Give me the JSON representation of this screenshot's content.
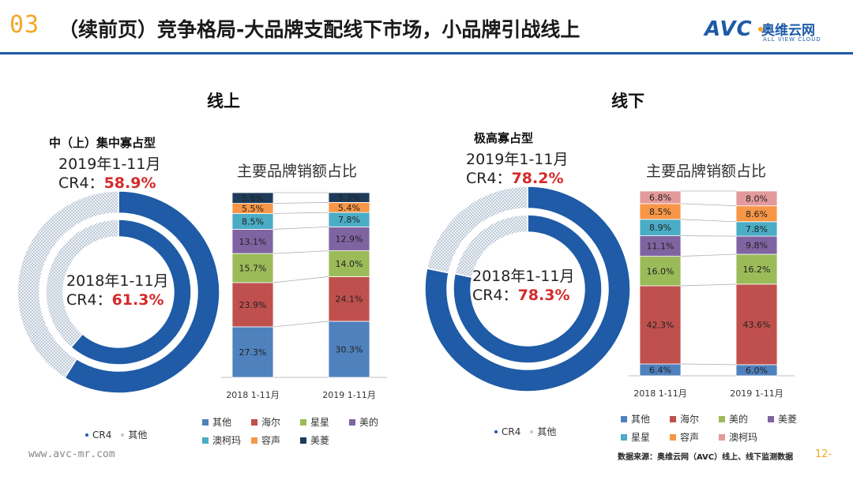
{
  "header": {
    "section_number": "03",
    "title": "（续前页）竞争格局-大品牌支配线下市场，小品牌引战线上",
    "logo_avc": "AVC",
    "logo_cn": "奥维云网",
    "logo_en": "ALL VIEW CLOUD"
  },
  "online": {
    "section_title": "线上",
    "type_label": "中（上）集中寡占型",
    "outer_period": "2019年1-11月",
    "outer_cr4_prefix": "CR4：",
    "outer_cr4_value": "58.9%",
    "inner_period": "2018年1-11月",
    "inner_cr4_prefix": "CR4：",
    "inner_cr4_value": "61.3%",
    "pie_legend": [
      "CR4",
      "其他"
    ],
    "bar_title": "主要品牌销额占比",
    "legend": [
      "其他",
      "海尔",
      "星星",
      "美的",
      "澳柯玛",
      "容声",
      "美菱"
    ]
  },
  "offline": {
    "section_title": "线下",
    "type_label": "极高寡占型",
    "outer_period": "2019年1-11月",
    "outer_cr4_prefix": "CR4：",
    "outer_cr4_value": "78.2%",
    "inner_period": "2018年1-11月",
    "inner_cr4_prefix": "CR4：",
    "inner_cr4_value": "78.3%",
    "pie_legend": [
      "CR4",
      "其他"
    ],
    "bar_title": "主要品牌销额占比",
    "legend": [
      "其他",
      "海尔",
      "美的",
      "美菱",
      "星星",
      "容声",
      "澳柯玛"
    ]
  },
  "footer": {
    "website": "www.avc-mr.com",
    "source": "数据来源：奥维云网（AVC）线上、线下监测数据",
    "page": "12-"
  },
  "colors": {
    "cr4": "#1f5ba6",
    "others_ring": "#bcc8d6",
    "其他": "#4f81bd",
    "海尔": "#c0504d",
    "星星": "#9bbb59",
    "美的": "#8064a2",
    "澳柯玛": "#4bacc6",
    "容声": "#f79646",
    "美菱": "#1f3b5a",
    "offline_美的": "#9bbb59",
    "offline_美菱": "#8064a2",
    "offline_星星": "#4bacc6",
    "offline_容声": "#f79646",
    "offline_澳柯玛": "#e39a9a"
  },
  "chart_data": [
    {
      "type": "pie",
      "name": "online-outer-2019",
      "categories": [
        "CR4",
        "其他"
      ],
      "values": [
        58.9,
        41.1
      ]
    },
    {
      "type": "pie",
      "name": "online-inner-2018",
      "categories": [
        "CR4",
        "其他"
      ],
      "values": [
        61.3,
        38.7
      ]
    },
    {
      "type": "bar",
      "stacked": true,
      "title": "主要品牌销额占比",
      "categories": [
        "2018 1-11月",
        "2019 1-11月"
      ],
      "series": [
        {
          "name": "其他",
          "values": [
            27.3,
            30.3
          ]
        },
        {
          "name": "海尔",
          "values": [
            23.9,
            24.1
          ]
        },
        {
          "name": "星星",
          "values": [
            15.7,
            14.0
          ]
        },
        {
          "name": "美的",
          "values": [
            13.1,
            12.9
          ]
        },
        {
          "name": "澳柯玛",
          "values": [
            8.5,
            7.8
          ]
        },
        {
          "name": "容声",
          "values": [
            5.5,
            5.4
          ]
        },
        {
          "name": "美菱",
          "values": [
            5.8,
            5.3
          ]
        }
      ],
      "labels": [
        [
          "27.3%",
          "23.9%",
          "15.7%",
          "13.1%",
          "8.5%",
          "5.5%",
          "5.8%"
        ],
        [
          "30.3%",
          "24.1%",
          "14.0%",
          "12.9%",
          "7.8%",
          "5.4%",
          "5.3%"
        ]
      ]
    },
    {
      "type": "pie",
      "name": "offline-outer-2019",
      "categories": [
        "CR4",
        "其他"
      ],
      "values": [
        78.2,
        21.8
      ]
    },
    {
      "type": "pie",
      "name": "offline-inner-2018",
      "categories": [
        "CR4",
        "其他"
      ],
      "values": [
        78.3,
        21.7
      ]
    },
    {
      "type": "bar",
      "stacked": true,
      "title": "主要品牌销额占比",
      "categories": [
        "2018 1-11月",
        "2019 1-11月"
      ],
      "series": [
        {
          "name": "其他",
          "values": [
            6.4,
            6.0
          ]
        },
        {
          "name": "海尔",
          "values": [
            42.3,
            43.6
          ]
        },
        {
          "name": "美的",
          "values": [
            16.0,
            16.2
          ]
        },
        {
          "name": "美菱",
          "values": [
            11.1,
            9.8
          ]
        },
        {
          "name": "星星",
          "values": [
            8.9,
            7.8
          ]
        },
        {
          "name": "容声",
          "values": [
            8.5,
            8.6
          ]
        },
        {
          "name": "澳柯玛",
          "values": [
            6.8,
            8.0
          ]
        }
      ],
      "labels": [
        [
          "6.4%",
          "42.3%",
          "16.0%",
          "11.1%",
          "8.9%",
          "8.5%",
          "6.8%"
        ],
        [
          "6.0%",
          "43.6%",
          "16.2%",
          "9.8%",
          "7.8%",
          "8.6%",
          "8.0%"
        ]
      ]
    }
  ]
}
